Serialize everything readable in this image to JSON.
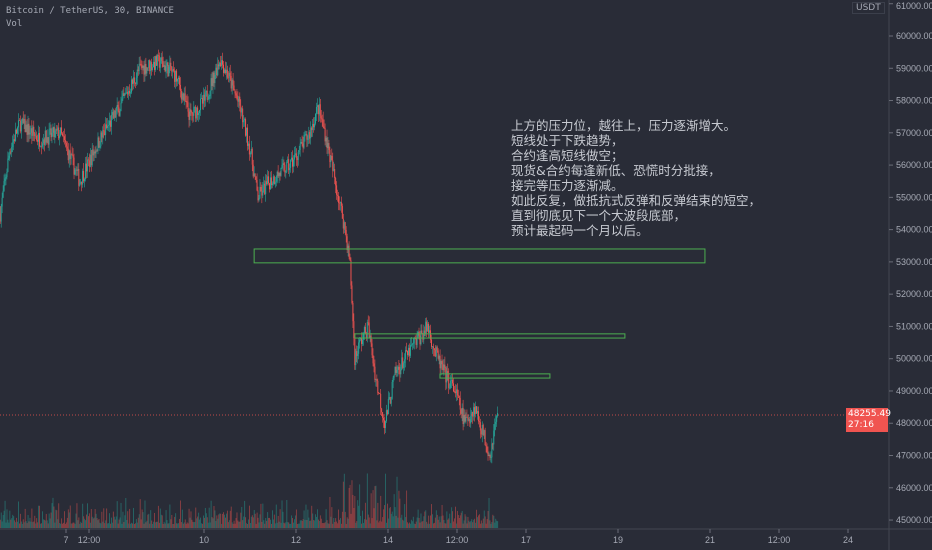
{
  "header": {
    "symbol": "Bitcoin / TetherUS, 30, BINANCE",
    "indicator": "Vol",
    "currency": "USDT"
  },
  "annotation": [
    "上方的压力位，越往上，压力逐渐增大。",
    "短线处于下跌趋势，",
    "合约逢高短线做空；",
    "现货&合约每逢新低、恐慌时分批接，",
    "接完等压力逐渐减。",
    "如此反复，做抵抗式反弹和反弹结束的短空，",
    "直到彻底见下一个大波段底部，",
    "预计最起码一个月以后。"
  ],
  "last_price": {
    "value": "48255.49",
    "countdown": "27:16",
    "color": "#f05450"
  },
  "colors": {
    "up": "#26a69a",
    "down": "#ef5350",
    "zone": "#4caf50"
  },
  "chart_data": {
    "type": "candlestick",
    "ylim": [
      44700,
      61000
    ],
    "y_ticks": [
      "61000.00",
      "60000.00",
      "59000.00",
      "58000.00",
      "57000.00",
      "56000.00",
      "55000.00",
      "54000.00",
      "53000.00",
      "52000.00",
      "51000.00",
      "50000.00",
      "49000.00",
      "48000.00",
      "47000.00",
      "46000.00",
      "45000.00"
    ],
    "x_ticks": [
      {
        "day": 7,
        "label": "7"
      },
      {
        "day": 7.5,
        "label": "12:00"
      },
      {
        "day": 10,
        "label": "10"
      },
      {
        "day": 12,
        "label": "12"
      },
      {
        "day": 14,
        "label": "14"
      },
      {
        "day": 15.5,
        "label": "12:00"
      },
      {
        "day": 17,
        "label": "17"
      },
      {
        "day": 19,
        "label": "19"
      },
      {
        "day": 21,
        "label": "21"
      },
      {
        "day": 22.5,
        "label": "12:00"
      },
      {
        "day": 24,
        "label": "24"
      }
    ],
    "xlim": [
      5.57,
      25.5
    ],
    "price_path": [
      [
        5.57,
        54500
      ],
      [
        5.78,
        56500
      ],
      [
        6.0,
        57300
      ],
      [
        6.43,
        56800
      ],
      [
        6.87,
        57000
      ],
      [
        7.3,
        55500
      ],
      [
        7.74,
        56800
      ],
      [
        8.17,
        57800
      ],
      [
        8.61,
        59000
      ],
      [
        9.04,
        59200
      ],
      [
        9.37,
        58800
      ],
      [
        9.7,
        57500
      ],
      [
        10.02,
        58000
      ],
      [
        10.35,
        59300
      ],
      [
        10.52,
        58800
      ],
      [
        10.78,
        57800
      ],
      [
        11.0,
        56500
      ],
      [
        11.17,
        55000
      ],
      [
        11.43,
        55500
      ],
      [
        11.87,
        56000
      ],
      [
        12.09,
        56500
      ],
      [
        12.3,
        57000
      ],
      [
        12.48,
        57800
      ],
      [
        12.63,
        57000
      ],
      [
        12.85,
        55500
      ],
      [
        13.07,
        54000
      ],
      [
        13.17,
        53000
      ],
      [
        13.28,
        50000
      ],
      [
        13.39,
        50500
      ],
      [
        13.57,
        51000
      ],
      [
        13.72,
        49500
      ],
      [
        13.93,
        48000
      ],
      [
        14.15,
        49500
      ],
      [
        14.37,
        50000
      ],
      [
        14.59,
        50500
      ],
      [
        14.87,
        51000
      ],
      [
        15.02,
        50200
      ],
      [
        15.24,
        49500
      ],
      [
        15.46,
        49000
      ],
      [
        15.67,
        48000
      ],
      [
        15.89,
        48500
      ],
      [
        16.11,
        47500
      ],
      [
        16.22,
        47000
      ],
      [
        16.33,
        48000
      ],
      [
        16.39,
        48255.49
      ]
    ],
    "zones": [
      {
        "from": 11.09,
        "to": 20.89,
        "high": 53400,
        "low": 52970
      },
      {
        "from": 13.28,
        "to": 19.15,
        "high": 50770,
        "low": 50640
      },
      {
        "from": 15.13,
        "to": 17.52,
        "high": 49530,
        "low": 49400
      }
    ]
  }
}
